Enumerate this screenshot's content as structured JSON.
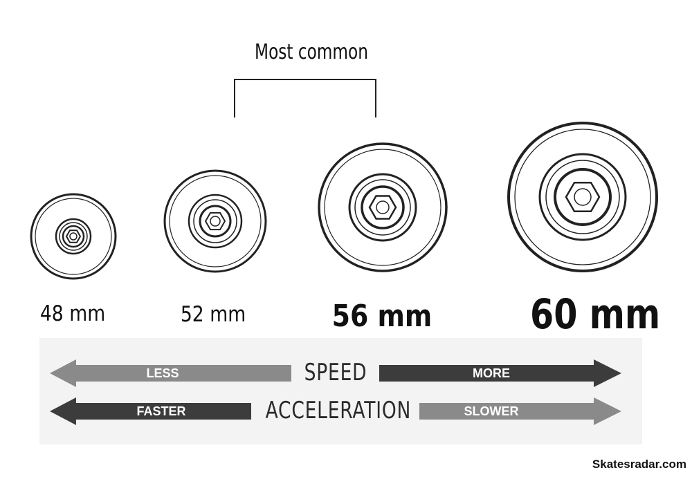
{
  "header": {
    "most_common_label": "Most common"
  },
  "wheels": [
    {
      "label": "48 mm"
    },
    {
      "label": "52 mm"
    },
    {
      "label": "56 mm"
    },
    {
      "label": "60 mm"
    }
  ],
  "metrics": {
    "speed": {
      "label": "SPEED",
      "left_text": "LESS",
      "right_text": "MORE"
    },
    "acceleration": {
      "label": "ACCELERATION",
      "left_text": "FASTER",
      "right_text": "SLOWER"
    }
  },
  "colors": {
    "light_arrow": "#8a8a8a",
    "dark_arrow": "#3c3c3c"
  },
  "credit": "Skatesradar.com"
}
